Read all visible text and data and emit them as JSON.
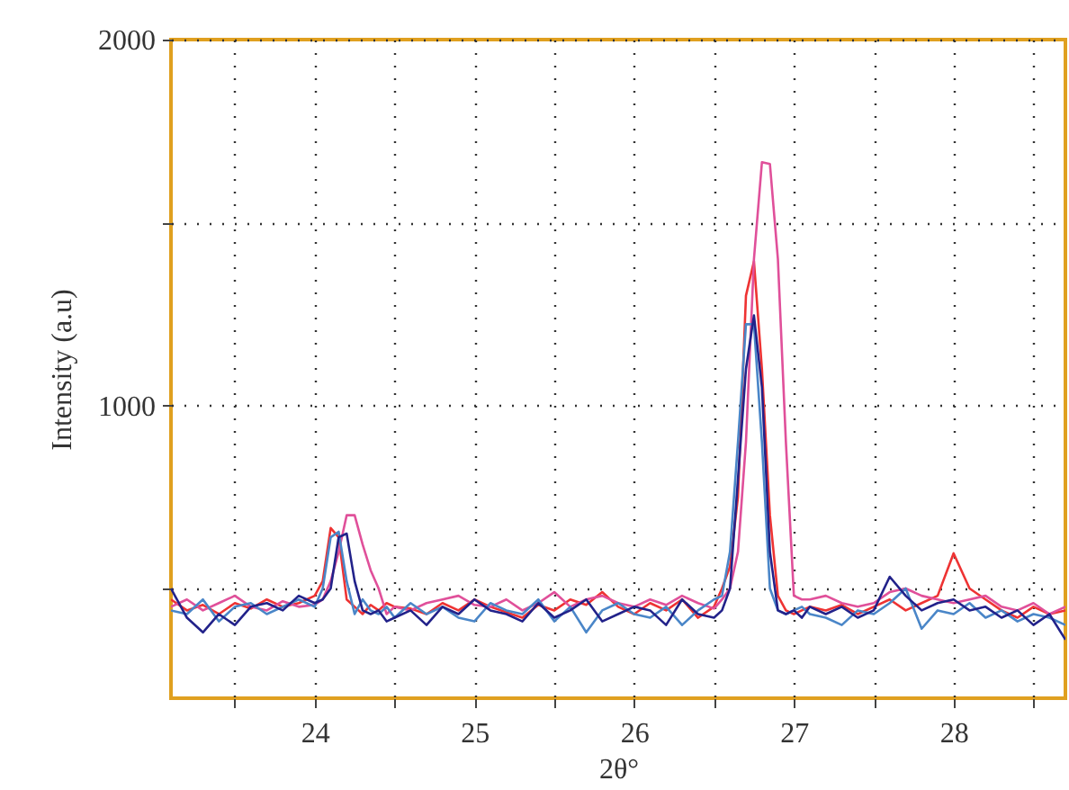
{
  "chart_data": {
    "type": "line",
    "xlabel": "2θ°",
    "ylabel": "Intensity (a.u)",
    "x": [
      23.1,
      23.2,
      23.3,
      23.4,
      23.5,
      23.6,
      23.7,
      23.8,
      23.9,
      24.0,
      24.05,
      24.1,
      24.15,
      24.2,
      24.25,
      24.3,
      24.35,
      24.4,
      24.45,
      24.5,
      24.6,
      24.7,
      24.8,
      24.9,
      25.0,
      25.1,
      25.2,
      25.3,
      25.4,
      25.5,
      25.6,
      25.7,
      25.8,
      25.9,
      26.0,
      26.1,
      26.2,
      26.3,
      26.4,
      26.5,
      26.55,
      26.6,
      26.65,
      26.7,
      26.75,
      26.8,
      26.85,
      26.9,
      26.95,
      27.0,
      27.05,
      27.1,
      27.2,
      27.3,
      27.4,
      27.5,
      27.6,
      27.7,
      27.8,
      27.9,
      28.0,
      28.1,
      28.2,
      28.3,
      28.4,
      28.5,
      28.6,
      28.7
    ],
    "series": [
      {
        "color": "#ee3333",
        "values": [
          470,
          440,
          455,
          430,
          460,
          445,
          470,
          450,
          460,
          480,
          520,
          665,
          640,
          470,
          450,
          430,
          455,
          440,
          460,
          450,
          445,
          430,
          460,
          440,
          470,
          450,
          435,
          420,
          455,
          440,
          470,
          455,
          490,
          450,
          430,
          460,
          440,
          470,
          420,
          450,
          500,
          560,
          750,
          1300,
          1394,
          1100,
          700,
          480,
          440,
          430,
          440,
          450,
          440,
          455,
          430,
          450,
          470,
          440,
          460,
          480,
          596,
          500,
          470,
          440,
          420,
          450,
          430,
          440
        ]
      },
      {
        "color": "#e0509a",
        "values": [
          450,
          470,
          440,
          460,
          480,
          450,
          440,
          465,
          450,
          455,
          470,
          520,
          600,
          700,
          700,
          620,
          550,
          500,
          430,
          450,
          440,
          460,
          470,
          480,
          455,
          450,
          470,
          440,
          460,
          490,
          450,
          470,
          480,
          460,
          450,
          470,
          455,
          480,
          460,
          445,
          470,
          500,
          600,
          900,
          1400,
          1665,
          1660,
          1400,
          900,
          480,
          470,
          470,
          480,
          460,
          450,
          460,
          490,
          500,
          480,
          470,
          460,
          470,
          480,
          450,
          440,
          460,
          430,
          450
        ]
      },
      {
        "color": "#4a86c8",
        "values": [
          440,
          430,
          470,
          410,
          450,
          460,
          430,
          450,
          470,
          450,
          500,
          640,
          655,
          520,
          430,
          470,
          440,
          430,
          450,
          420,
          460,
          430,
          450,
          420,
          410,
          460,
          440,
          430,
          470,
          410,
          450,
          380,
          440,
          460,
          430,
          420,
          450,
          400,
          440,
          470,
          480,
          600,
          900,
          1222,
          1222,
          900,
          500,
          440,
          430,
          440,
          450,
          430,
          420,
          400,
          440,
          430,
          460,
          500,
          390,
          440,
          430,
          460,
          420,
          440,
          410,
          430,
          420,
          400
        ]
      },
      {
        "color": "#22228a",
        "values": [
          500,
          420,
          380,
          430,
          400,
          450,
          460,
          440,
          480,
          460,
          470,
          500,
          640,
          650,
          520,
          440,
          430,
          440,
          410,
          420,
          440,
          400,
          450,
          430,
          470,
          440,
          430,
          410,
          460,
          420,
          440,
          470,
          410,
          430,
          450,
          440,
          400,
          470,
          430,
          420,
          440,
          500,
          800,
          1100,
          1246,
          1050,
          600,
          440,
          430,
          440,
          420,
          450,
          430,
          450,
          420,
          440,
          532,
          480,
          440,
          460,
          470,
          440,
          450,
          420,
          440,
          400,
          430,
          360
        ]
      }
    ],
    "xlim": [
      23.1,
      28.7
    ],
    "xticks": [
      {
        "value": 23.5,
        "label": null
      },
      24,
      {
        "value": 24.5,
        "label": null
      },
      25,
      {
        "value": 25.5,
        "label": null
      },
      26,
      {
        "value": 26.5,
        "label": null
      },
      27,
      {
        "value": 27.5,
        "label": null
      },
      28,
      {
        "value": 28.5,
        "label": null
      }
    ],
    "ylim": [
      200,
      2000
    ],
    "yticks": [
      {
        "value": 500,
        "label": null
      },
      1000,
      {
        "value": 1500,
        "label": null
      },
      2000
    ],
    "grid": true,
    "line_style": "solid"
  }
}
